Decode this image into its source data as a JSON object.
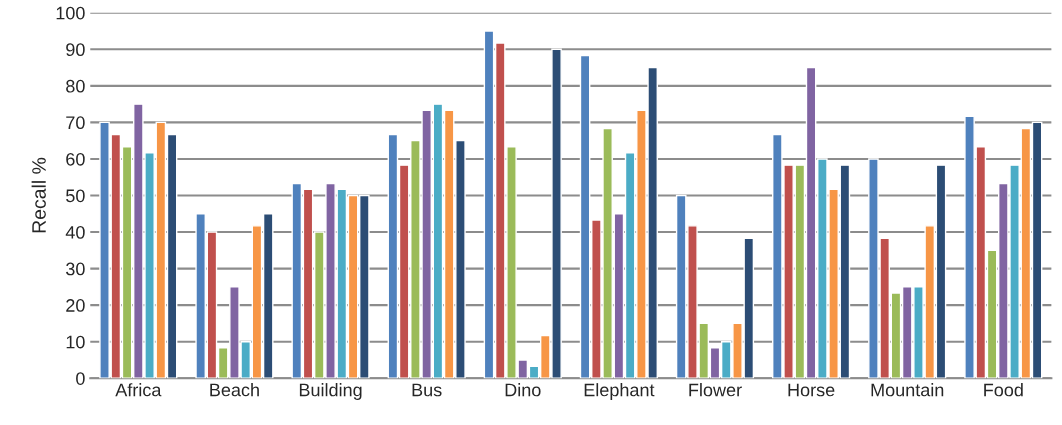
{
  "chart_data": {
    "type": "bar",
    "ylabel": "Recall %",
    "categories": [
      "Africa",
      "Beach",
      "Building",
      "Bus",
      "Dino",
      "Elephant",
      "Flower",
      "Horse",
      "Mountain",
      "Food"
    ],
    "series": [
      {
        "color": "#4f81bd",
        "values": [
          70,
          45,
          53.3,
          66.7,
          95,
          88.3,
          50,
          66.7,
          60,
          71.7
        ]
      },
      {
        "color": "#c0504d",
        "values": [
          66.7,
          40,
          51.7,
          58.3,
          91.7,
          43.3,
          41.7,
          58.3,
          38.3,
          63.3
        ]
      },
      {
        "color": "#9bbb59",
        "values": [
          63.3,
          8.3,
          40,
          65,
          63.3,
          68.3,
          15,
          58.3,
          23.3,
          35
        ]
      },
      {
        "color": "#8064a2",
        "values": [
          75,
          25,
          53.3,
          73.3,
          5,
          45,
          8.3,
          85,
          25,
          53.3
        ]
      },
      {
        "color": "#4bacc6",
        "values": [
          61.7,
          10,
          51.7,
          75,
          3.3,
          61.7,
          10,
          60,
          25,
          58.3
        ]
      },
      {
        "color": "#f79646",
        "values": [
          70,
          41.7,
          50,
          73.3,
          11.7,
          73.3,
          15,
          51.7,
          41.7,
          68.3
        ]
      },
      {
        "color": "#2c4d75",
        "values": [
          66.7,
          45,
          50,
          65,
          90,
          85,
          38.3,
          58.3,
          58.3,
          70
        ]
      }
    ],
    "ylim": [
      0,
      100
    ],
    "yticks": [
      0,
      10,
      20,
      30,
      40,
      50,
      60,
      70,
      80,
      90,
      100
    ],
    "grid": "y",
    "legend": false
  }
}
